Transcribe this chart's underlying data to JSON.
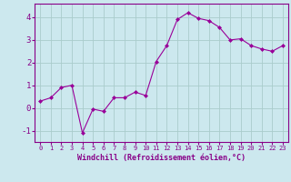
{
  "x": [
    0,
    1,
    2,
    3,
    4,
    5,
    6,
    7,
    8,
    9,
    10,
    11,
    12,
    13,
    14,
    15,
    16,
    17,
    18,
    19,
    20,
    21,
    22,
    23
  ],
  "y": [
    0.3,
    0.45,
    0.9,
    1.0,
    -1.1,
    -0.05,
    -0.15,
    0.45,
    0.45,
    0.7,
    0.55,
    2.05,
    2.75,
    3.9,
    4.2,
    3.95,
    3.85,
    3.55,
    3.0,
    3.05,
    2.75,
    2.6,
    2.5,
    2.75
  ],
  "line_color": "#990099",
  "marker": "D",
  "marker_size": 2,
  "bg_color": "#cce8ee",
  "grid_color": "#aacccc",
  "xlabel": "Windchill (Refroidissement éolien,°C)",
  "ylim": [
    -1.5,
    4.6
  ],
  "xlim": [
    -0.5,
    23.5
  ],
  "yticks": [
    -1,
    0,
    1,
    2,
    3,
    4
  ],
  "xticks": [
    0,
    1,
    2,
    3,
    4,
    5,
    6,
    7,
    8,
    9,
    10,
    11,
    12,
    13,
    14,
    15,
    16,
    17,
    18,
    19,
    20,
    21,
    22,
    23
  ],
  "tick_color": "#880088",
  "label_color": "#880088",
  "xlabel_fontsize": 6.0,
  "xtick_fontsize": 5.0,
  "ytick_fontsize": 6.5
}
